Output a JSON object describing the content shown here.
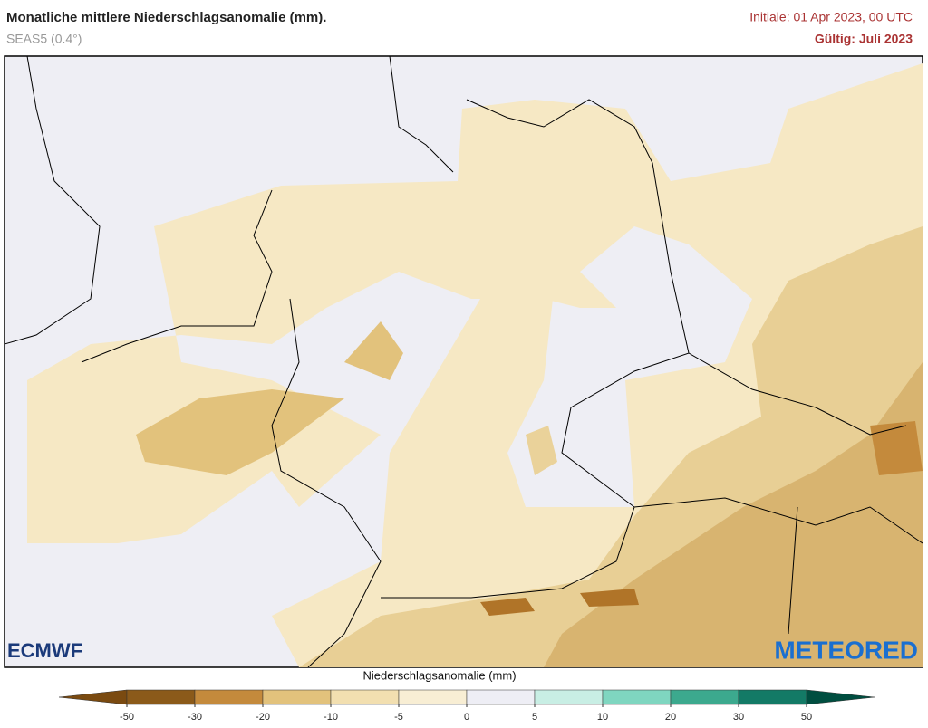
{
  "header": {
    "title": "Monatliche mittlere Niederschlagsanomalie (mm).",
    "subtitle": "SEAS5 (0.4°)",
    "init": "Initiale: 01 Apr 2023, 00 UTC",
    "valid": "Gültig: Juli 2023"
  },
  "logos": {
    "left": "ECMWF",
    "right": "METEORED"
  },
  "colorbar": {
    "label": "Niederschlagsanomalie (mm)",
    "ticks": [
      -50,
      -30,
      -20,
      -10,
      -5,
      0,
      5,
      10,
      20,
      30,
      50
    ],
    "colors": [
      "#7a4a10",
      "#8b5a1a",
      "#c48a3c",
      "#e2c27c",
      "#f2dfb0",
      "#f8eed4",
      "#eeeef5",
      "#c8eee4",
      "#7fd6c0",
      "#3ca98e",
      "#137a66",
      "#004e40"
    ]
  }
}
